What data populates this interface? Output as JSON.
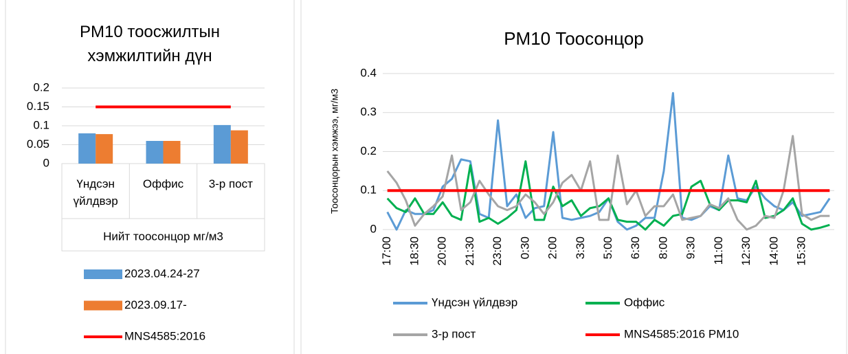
{
  "chart_data": [
    {
      "type": "bar",
      "title": "PM10 тоосжилтын хэмжилтийн дүн",
      "x_label": "Нийт тоосонцор мг/м3",
      "categories": [
        "Үндсэн үйлдвэр",
        "Оффис",
        "3-р пост"
      ],
      "series": [
        {
          "name": "2023.04.24-27",
          "color": "#5b9bd5",
          "values": [
            0.08,
            0.06,
            0.102
          ]
        },
        {
          "name": "2023.09.17-",
          "color": "#ed7d31",
          "values": [
            0.078,
            0.06,
            0.088
          ]
        },
        {
          "name": "MNS4585:2016",
          "color": "#ff0000",
          "type": "line",
          "values": [
            0.15,
            0.15,
            0.15
          ]
        }
      ],
      "ylim": [
        0,
        0.2
      ],
      "yticks": [
        0,
        0.05,
        0.1,
        0.15,
        0.2
      ],
      "grid": true,
      "legend": "bottom"
    },
    {
      "type": "line",
      "title": "PM10 Тоосонцор",
      "y_label": "Тоосонцорын хэмжээ, мг/м3",
      "categories": [
        "17:00",
        null,
        null,
        "18:30",
        null,
        null,
        "20:00",
        null,
        null,
        "21:30",
        null,
        null,
        "23:00",
        null,
        null,
        "0:30",
        null,
        null,
        "2:00",
        null,
        null,
        "3:30",
        null,
        null,
        "5:00",
        null,
        null,
        "6:30",
        null,
        null,
        "8:00",
        null,
        null,
        "9:30",
        null,
        null,
        "11:00",
        null,
        null,
        "12:30",
        null,
        null,
        "14:00",
        null,
        null,
        "15:30",
        null,
        null,
        null
      ],
      "series": [
        {
          "name": "Үндсэн үйлдвэр",
          "color": "#5b9bd5",
          "values": [
            0.045,
            0.0,
            0.05,
            0.04,
            0.04,
            0.05,
            0.11,
            0.13,
            0.18,
            0.175,
            0.04,
            0.03,
            0.28,
            0.06,
            0.09,
            0.03,
            0.055,
            0.06,
            0.25,
            0.03,
            0.025,
            0.03,
            0.035,
            0.045,
            0.08,
            0.02,
            0.0,
            0.01,
            0.03,
            0.03,
            0.15,
            0.35,
            0.03,
            0.025,
            0.035,
            0.06,
            0.05,
            0.19,
            0.08,
            0.075,
            0.11,
            0.08,
            0.06,
            0.05,
            0.07,
            0.035,
            0.04,
            0.045,
            0.08
          ]
        },
        {
          "name": "Оффис",
          "color": "#00b050",
          "values": [
            0.08,
            0.055,
            0.045,
            0.08,
            0.04,
            0.04,
            0.07,
            0.035,
            0.025,
            0.165,
            0.02,
            0.03,
            0.015,
            0.03,
            0.05,
            0.175,
            0.025,
            0.025,
            0.11,
            0.06,
            0.075,
            0.035,
            0.055,
            0.06,
            0.08,
            0.025,
            0.02,
            0.02,
            0.0,
            0.025,
            0.01,
            0.035,
            0.04,
            0.11,
            0.125,
            0.065,
            0.05,
            0.075,
            0.075,
            0.07,
            0.125,
            0.03,
            0.035,
            0.05,
            0.08,
            0.015,
            0.0,
            0.005,
            0.012
          ]
        },
        {
          "name": "3-р пост",
          "color": "#a5a5a5",
          "values": [
            0.15,
            0.12,
            0.075,
            0.01,
            0.04,
            0.06,
            0.085,
            0.19,
            0.05,
            0.07,
            0.125,
            0.09,
            0.06,
            0.05,
            0.06,
            0.09,
            0.07,
            0.04,
            0.07,
            0.12,
            0.14,
            0.1,
            0.175,
            0.025,
            0.025,
            0.19,
            0.065,
            0.1,
            0.035,
            0.06,
            0.06,
            0.09,
            0.025,
            0.03,
            0.035,
            0.065,
            0.055,
            0.08,
            0.025,
            0.0,
            0.01,
            0.035,
            0.03,
            0.1,
            0.24,
            0.04,
            0.025,
            0.035,
            0.035
          ]
        },
        {
          "name": "MNS4585:2016 PM10",
          "color": "#ff0000",
          "values": [
            0.1,
            0.1,
            0.1,
            0.1,
            0.1,
            0.1,
            0.1,
            0.1,
            0.1,
            0.1,
            0.1,
            0.1,
            0.1,
            0.1,
            0.1,
            0.1,
            0.1,
            0.1,
            0.1,
            0.1,
            0.1,
            0.1,
            0.1,
            0.1,
            0.1,
            0.1,
            0.1,
            0.1,
            0.1,
            0.1,
            0.1,
            0.1,
            0.1,
            0.1,
            0.1,
            0.1,
            0.1,
            0.1,
            0.1,
            0.1,
            0.1,
            0.1,
            0.1,
            0.1,
            0.1,
            0.1,
            0.1,
            0.1,
            0.1
          ]
        }
      ],
      "ylim": [
        0,
        0.4
      ],
      "yticks": [
        0,
        0.1,
        0.2,
        0.3,
        0.4
      ],
      "grid": true,
      "legend": "bottom"
    }
  ]
}
